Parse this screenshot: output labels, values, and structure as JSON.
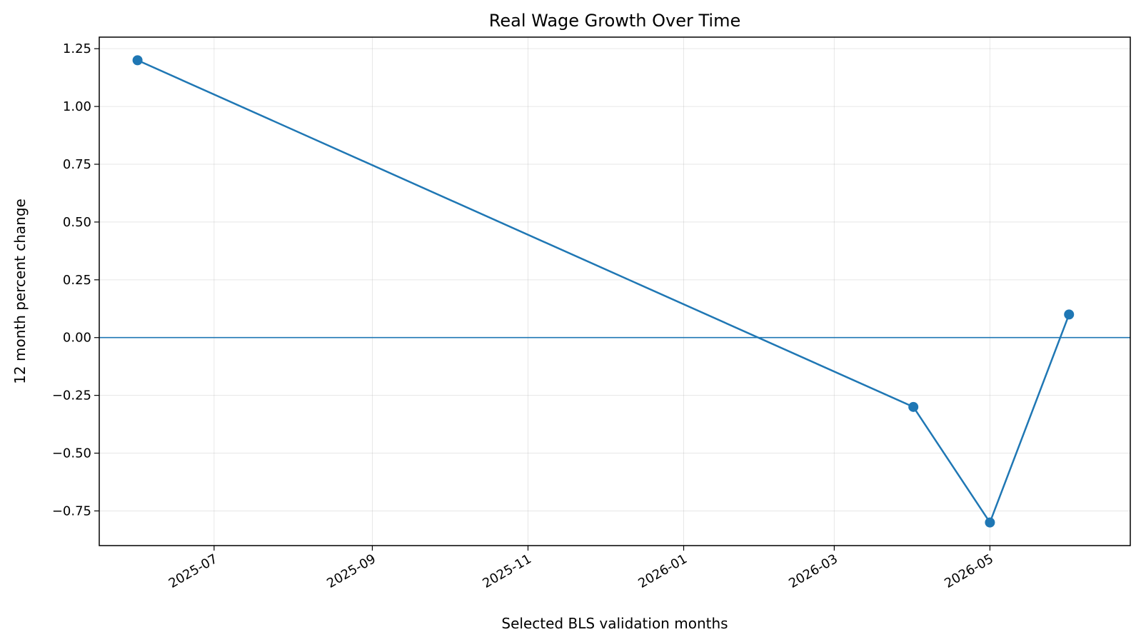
{
  "chart_data": {
    "type": "line",
    "title": "Real Wage Growth Over Time",
    "xlabel": "Selected BLS validation months",
    "ylabel": "12 month percent change",
    "x_type": "date",
    "xlim": [
      "2025-05-17",
      "2026-06-25"
    ],
    "ylim": [
      -0.9,
      1.3
    ],
    "x_ticks": [
      "2025-07-01",
      "2025-09-01",
      "2025-11-01",
      "2026-01-01",
      "2026-03-01",
      "2026-05-01"
    ],
    "x_tick_labels": [
      "2025-07",
      "2025-09",
      "2025-11",
      "2026-01",
      "2026-03",
      "2026-05"
    ],
    "y_ticks": [
      -0.75,
      -0.5,
      -0.25,
      0.0,
      0.25,
      0.5,
      0.75,
      1.0,
      1.25
    ],
    "y_tick_labels": [
      "−0.75",
      "−0.50",
      "−0.25",
      "0.00",
      "0.25",
      "0.50",
      "0.75",
      "1.00",
      "1.25"
    ],
    "grid": true,
    "reference_line_y": 0,
    "series": [
      {
        "x": [
          "2025-06-01",
          "2026-04-01",
          "2026-05-01",
          "2026-06-01"
        ],
        "values": [
          1.2,
          -0.3,
          -0.8,
          0.1
        ],
        "color": "#1f77b4",
        "marker": "circle"
      }
    ]
  }
}
